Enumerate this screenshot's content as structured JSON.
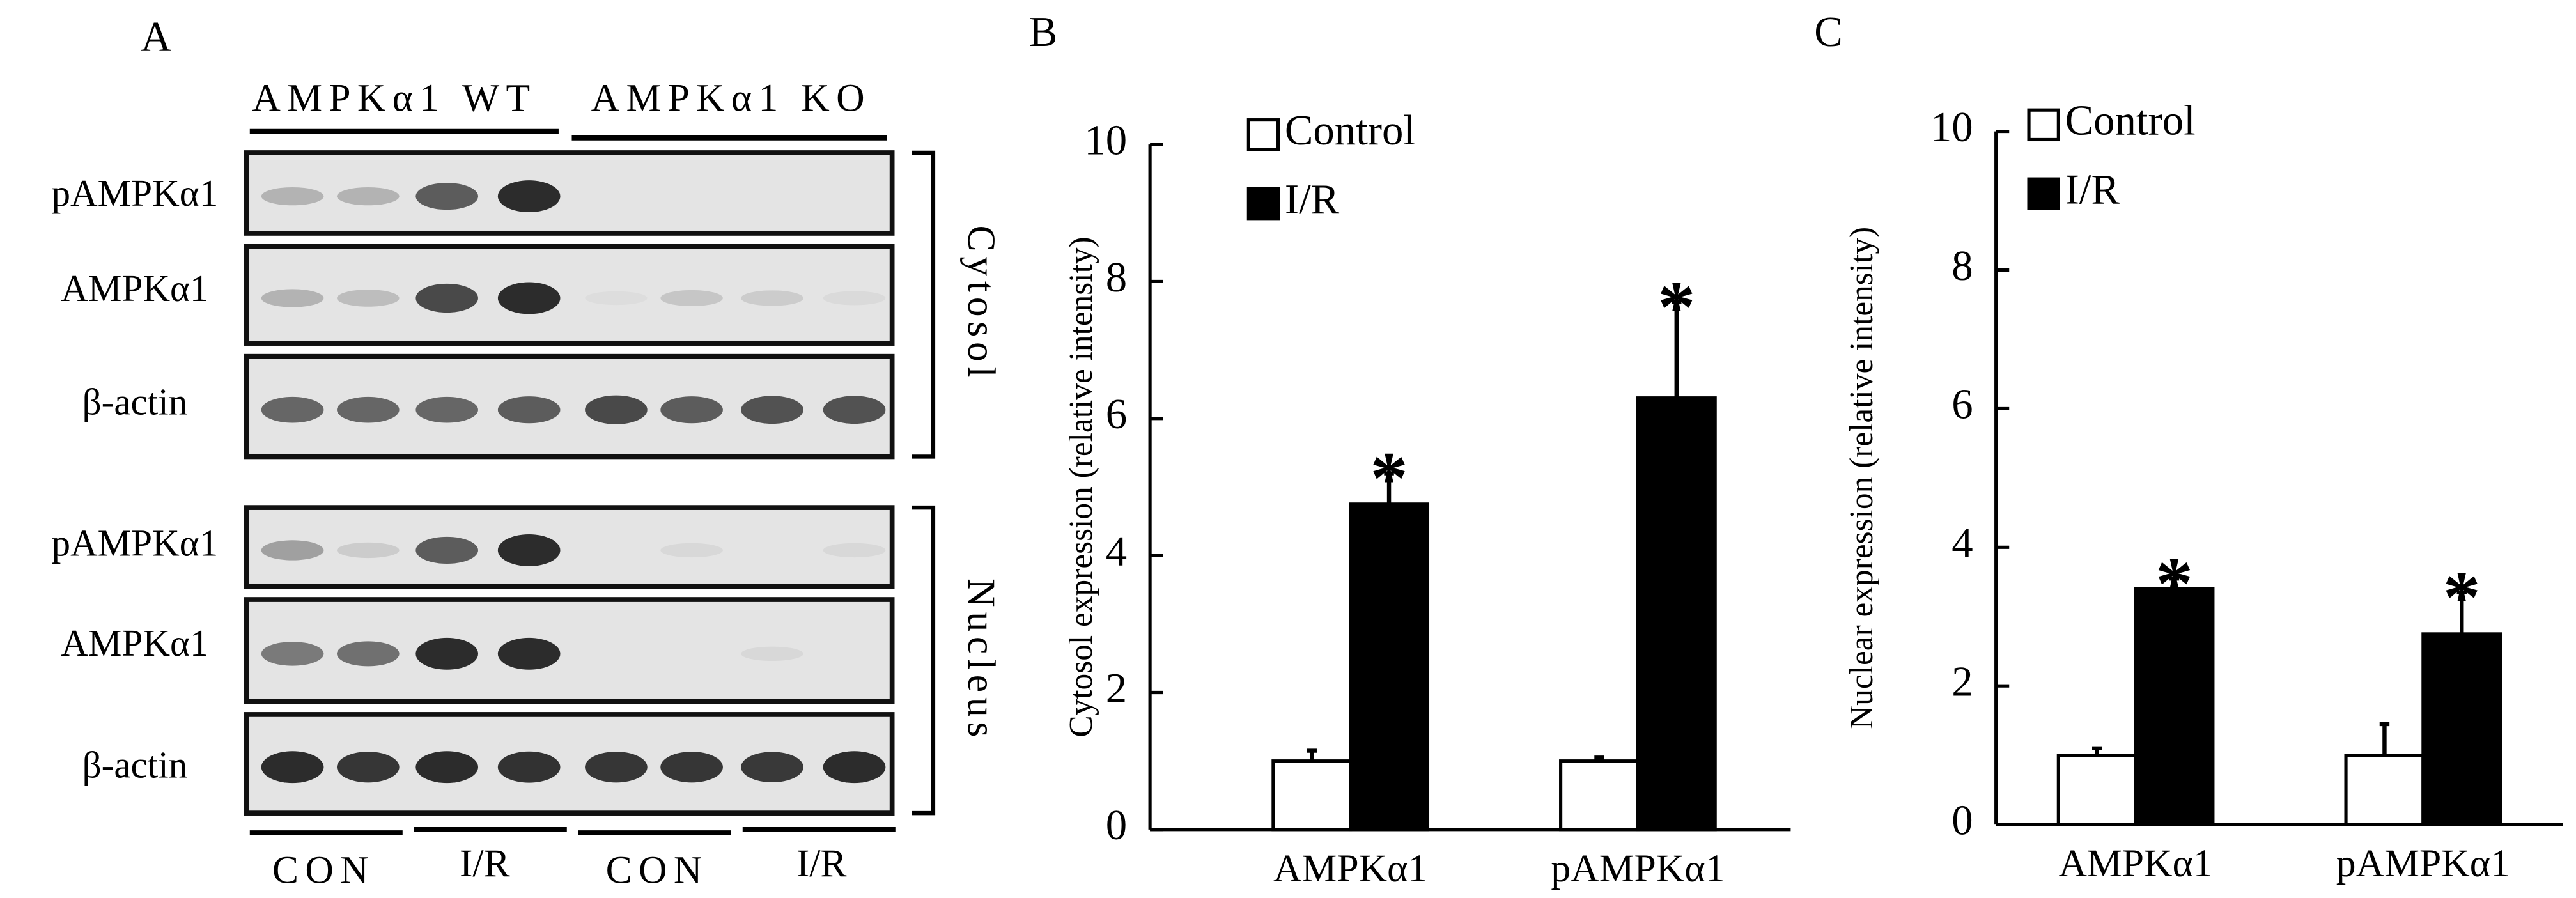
{
  "blot_panel": {
    "panel_label": "A",
    "genotypes": [
      "AMPKα1 WT",
      "AMPKα1 KO"
    ],
    "cytosol_rows": [
      "pAMPKα1",
      "AMPKα1",
      "β-actin"
    ],
    "nucleus_rows": [
      "pAMPKα1",
      "AMPKα1",
      "β-actin"
    ],
    "compartments": [
      "Cytosol",
      "Nucleus"
    ],
    "lane_groups": [
      "CON",
      "I/R",
      "CON",
      "I/R"
    ]
  },
  "chart_data": [
    {
      "type": "bar",
      "panel_label": "B",
      "ylabel": "Cytosol expression (relative intensity)",
      "categories": [
        "AMPKα1",
        "pAMPKα1"
      ],
      "series": [
        {
          "name": "Control",
          "color": "#ffffff",
          "values": [
            1.0,
            1.0
          ],
          "errors": [
            0.15,
            0.05
          ]
        },
        {
          "name": "I/R",
          "color": "#000000",
          "values": [
            4.75,
            6.3
          ],
          "errors": [
            0.45,
            1.4
          ],
          "significance": [
            "*",
            "*"
          ]
        }
      ],
      "ylim": [
        0,
        10
      ],
      "yticks": [
        0,
        2,
        4,
        6,
        8,
        10
      ]
    },
    {
      "type": "bar",
      "panel_label": "C",
      "ylabel": "Nuclear expression (relative intensity)",
      "categories": [
        "AMPKα1",
        "pAMPKα1"
      ],
      "series": [
        {
          "name": "Control",
          "color": "#ffffff",
          "values": [
            1.0,
            1.0
          ],
          "errors": [
            0.1,
            0.45
          ]
        },
        {
          "name": "I/R",
          "color": "#000000",
          "values": [
            3.4,
            2.75
          ],
          "errors": [
            0.15,
            0.6
          ],
          "significance": [
            "*",
            "*"
          ]
        }
      ],
      "ylim": [
        0,
        10
      ],
      "yticks": [
        0,
        2,
        4,
        6,
        8,
        10
      ]
    }
  ]
}
